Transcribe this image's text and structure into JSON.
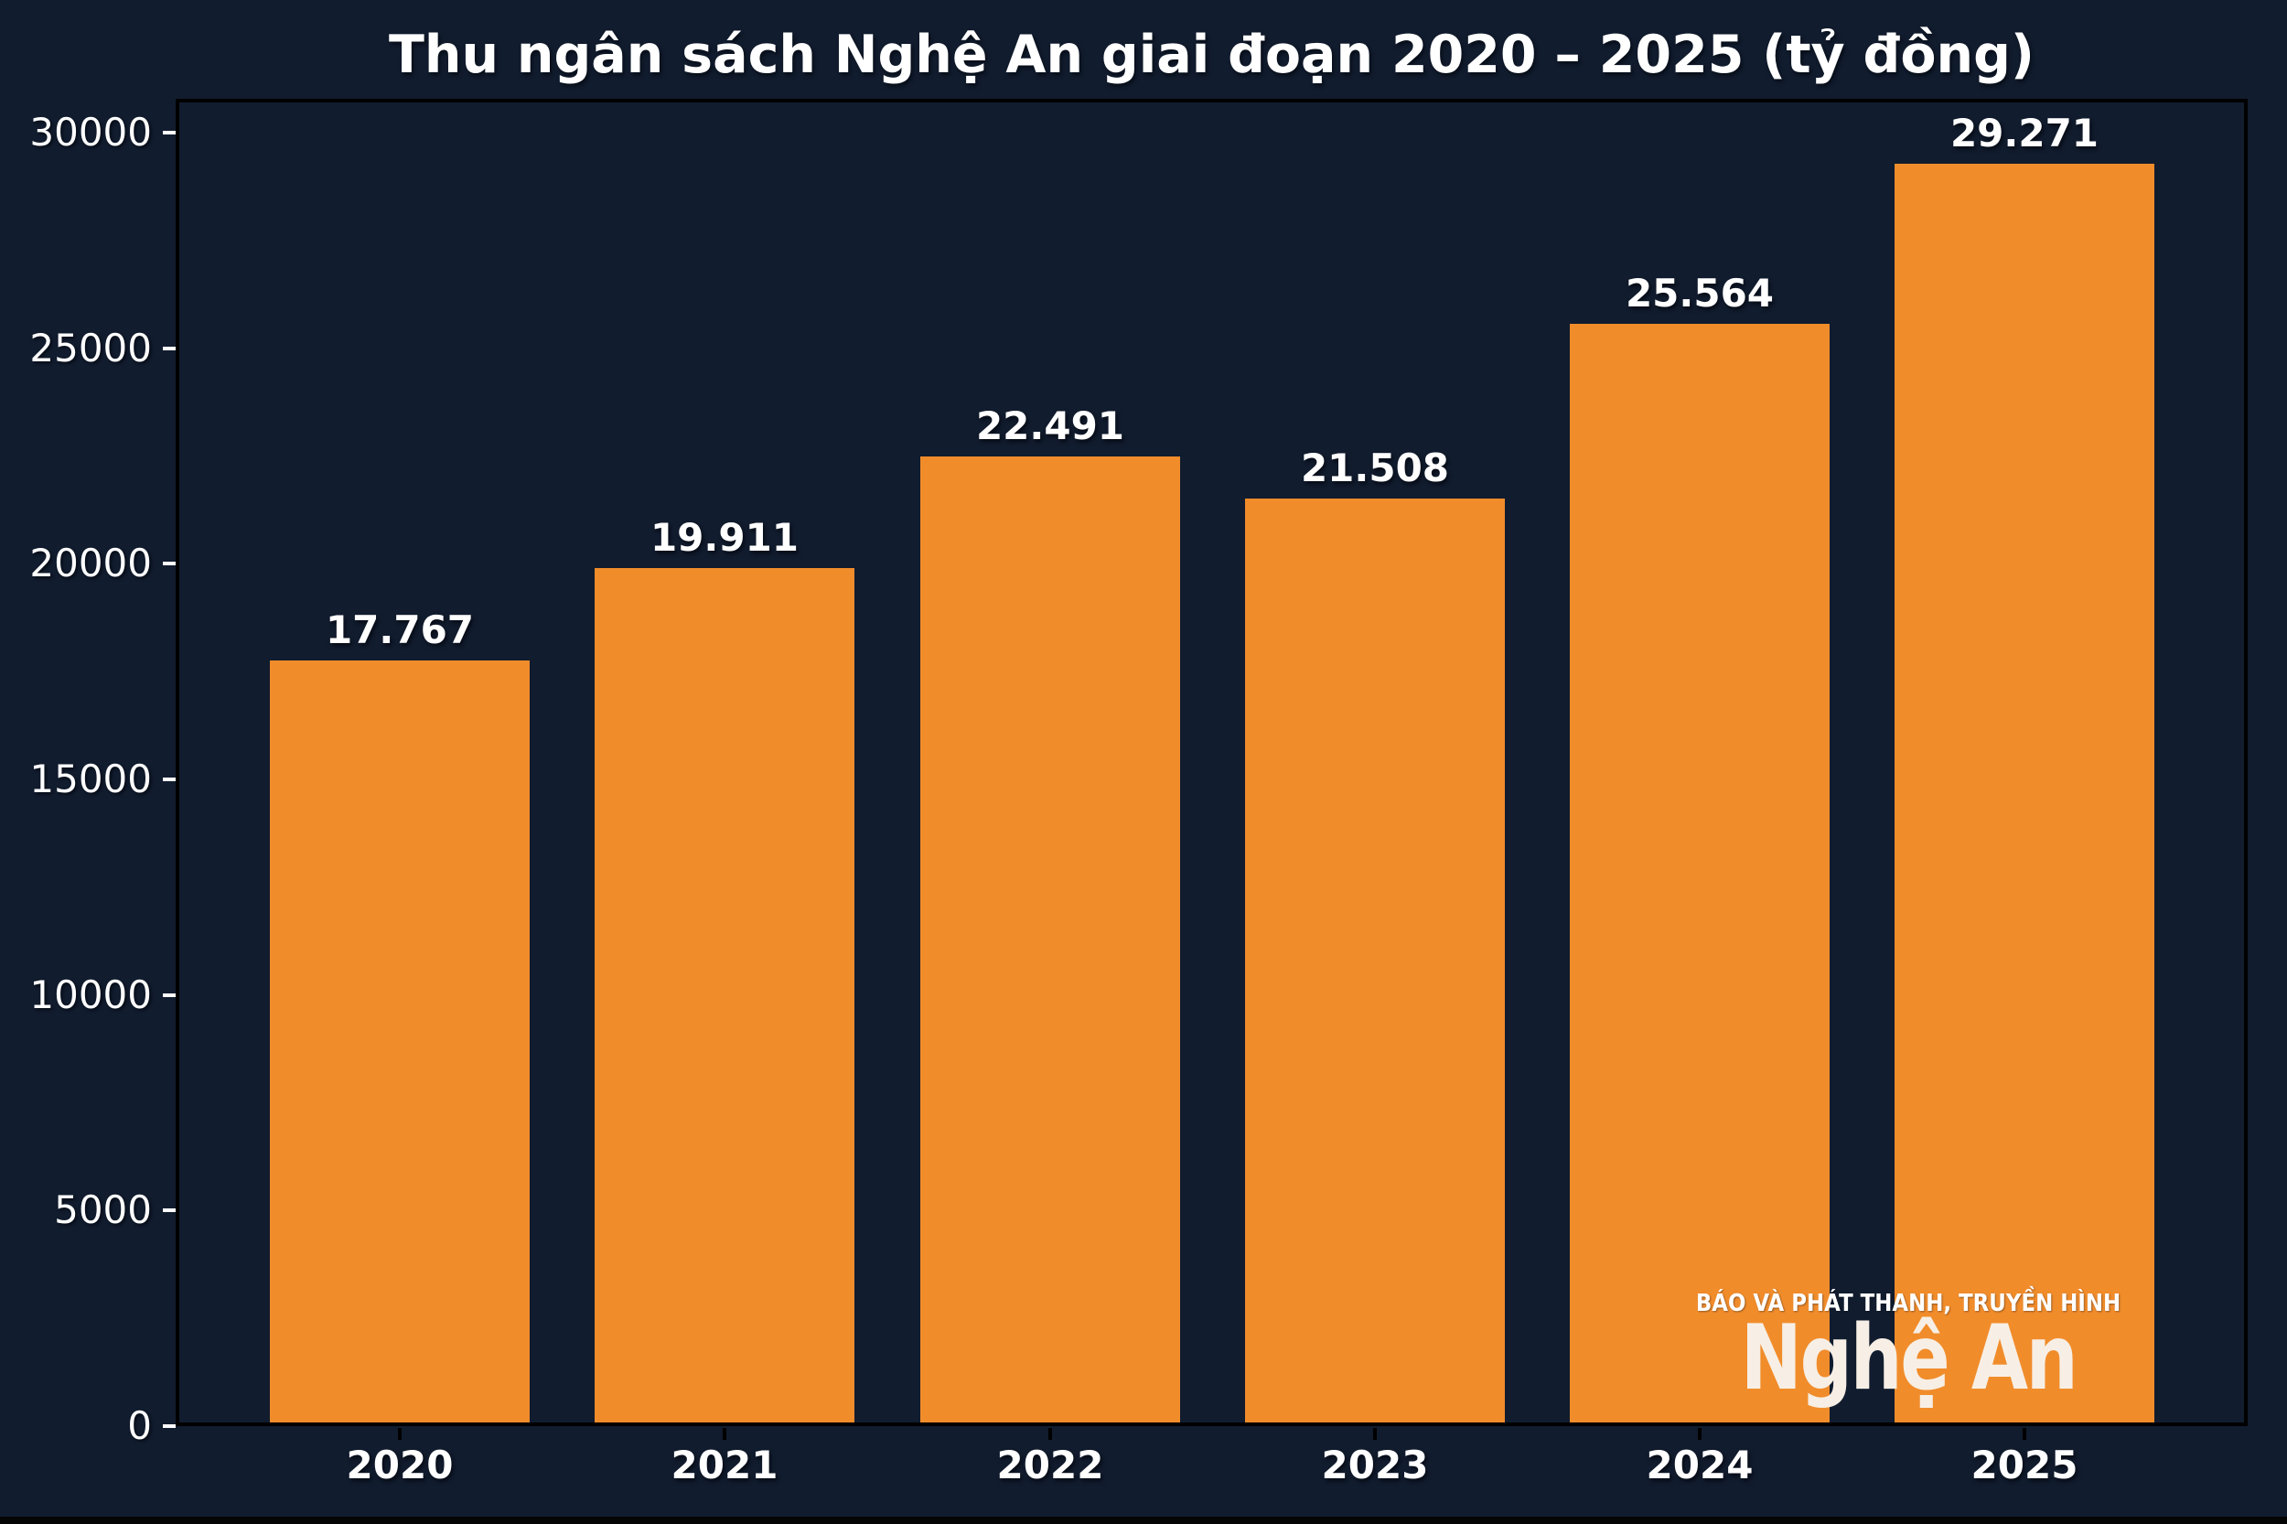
{
  "title": "Thu ngân sách Nghệ An giai đoạn 2020 – 2025 (tỷ đồng)",
  "colors": {
    "background": "#111c2e",
    "bar": "#f18c2b",
    "text": "#ffffff",
    "spine": "#000000",
    "ytick_mark": "#ffffff",
    "xtick_mark": "#000000",
    "watermark_text": "#f7efe5"
  },
  "chart_data": {
    "type": "bar",
    "title": "Thu ngân sách Nghệ An giai đoạn 2020 – 2025 (tỷ đồng)",
    "categories": [
      "2020",
      "2021",
      "2022",
      "2023",
      "2024",
      "2025"
    ],
    "values": [
      17767,
      19911,
      22491,
      21508,
      25564,
      29271
    ],
    "bar_labels": [
      "17.767",
      "19.911",
      "22.491",
      "21.508",
      "25.564",
      "29.271"
    ],
    "xlabel": "",
    "ylabel": "",
    "ylim": [
      0,
      30785
    ],
    "yticks": [
      0,
      5000,
      10000,
      15000,
      20000,
      25000,
      30000
    ],
    "ytick_labels": [
      "0",
      "5000",
      "10000",
      "15000",
      "20000",
      "25000",
      "30000"
    ],
    "grid": false,
    "legend": null,
    "bar_color": "#f18c2b",
    "unit": "tỷ đồng"
  },
  "watermark": {
    "line1": "BÁO VÀ PHÁT THANH, TRUYỀN HÌNH",
    "line2": "Nghệ An"
  }
}
